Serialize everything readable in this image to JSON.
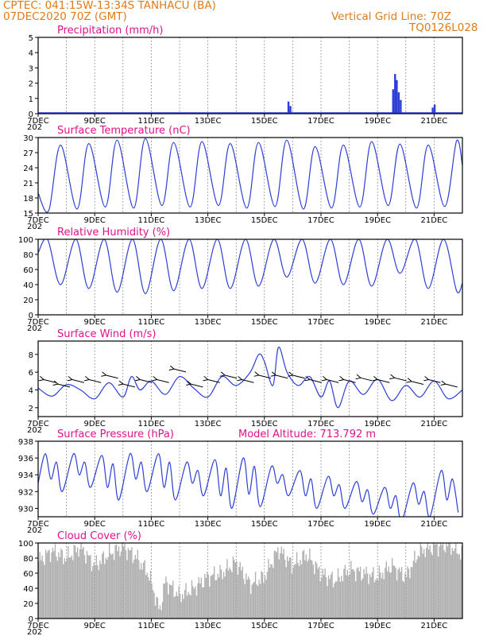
{
  "header": {
    "line1": "CPTEC:   041:15W-13:34S   TANHACU (BA)",
    "line2": "07DEC2020 70Z (GMT)",
    "grid_line": "Vertical Grid Line: 70Z",
    "code": "TQ0126L028"
  },
  "x_axis": {
    "start_day": 7,
    "end_day": 22,
    "tick_days": [
      7,
      9,
      11,
      13,
      15,
      17,
      19,
      21
    ],
    "tick_labels": [
      "7DEC",
      "9DEC",
      "11DEC",
      "13DEC",
      "15DEC",
      "17DEC",
      "19DEC",
      "21DEC"
    ],
    "sub_label": "202"
  },
  "colors": {
    "line": "#2b3fd6",
    "bars": "#2b3fd6",
    "cloud": "#b0b0b0",
    "title": "#e0118c",
    "header": "#e07b17"
  },
  "chart_data": [
    {
      "id": "precip",
      "type": "bar",
      "title": "Precipitation (mm/h)",
      "ylim": [
        0,
        5
      ],
      "yticks": [
        0,
        1,
        2,
        3,
        4,
        5
      ],
      "bars": [
        [
          15.85,
          0.8
        ],
        [
          15.92,
          0.5
        ],
        [
          19.55,
          1.6
        ],
        [
          19.62,
          2.6
        ],
        [
          19.68,
          2.2
        ],
        [
          19.75,
          1.4
        ],
        [
          19.82,
          0.9
        ],
        [
          20.95,
          0.4
        ],
        [
          21.02,
          0.6
        ]
      ]
    },
    {
      "id": "temp",
      "type": "line",
      "title": "Surface Temperature (nC)",
      "ylim": [
        15,
        30
      ],
      "yticks": [
        15,
        18,
        21,
        24,
        27,
        30
      ],
      "daily_min": [
        15.5,
        15.8,
        16.2,
        16.0,
        16.5,
        16.2,
        16.5,
        16.0,
        16.3,
        15.8,
        16.0,
        16.2,
        16.5,
        16.0,
        16.3
      ],
      "daily_max": [
        28.5,
        28.8,
        29.5,
        29.8,
        29.0,
        29.2,
        28.8,
        29.0,
        29.5,
        28.2,
        28.5,
        29.2,
        28.7,
        28.5,
        29.3
      ],
      "min_hour": 9,
      "max_hour": 19
    },
    {
      "id": "rh",
      "type": "line",
      "title": "Relative Humidity (%)",
      "ylim": [
        0,
        100
      ],
      "yticks": [
        0,
        20,
        40,
        60,
        80,
        100
      ],
      "daily_max": [
        100,
        100,
        100,
        100,
        100,
        100,
        100,
        100,
        100,
        100,
        100,
        100,
        100,
        100,
        100
      ],
      "daily_min": [
        40,
        35,
        30,
        28,
        32,
        35,
        35,
        38,
        50,
        42,
        40,
        38,
        55,
        35,
        32
      ],
      "max_hour": 8,
      "min_hour": 19
    },
    {
      "id": "wind",
      "type": "line",
      "title": "Surface Wind (m/s)",
      "ylim": [
        1,
        9.5
      ],
      "yticks": [
        2,
        4,
        6,
        8
      ],
      "speed": [
        [
          7.0,
          4.2
        ],
        [
          7.5,
          3.3
        ],
        [
          8.0,
          4.6
        ],
        [
          8.5,
          4.0
        ],
        [
          9.0,
          3.0
        ],
        [
          9.5,
          4.8
        ],
        [
          10.0,
          3.2
        ],
        [
          10.3,
          5.5
        ],
        [
          10.6,
          4.0
        ],
        [
          11.0,
          5.0
        ],
        [
          11.5,
          3.5
        ],
        [
          12.0,
          5.5
        ],
        [
          12.5,
          4.2
        ],
        [
          13.0,
          3.2
        ],
        [
          13.5,
          5.5
        ],
        [
          14.0,
          4.5
        ],
        [
          14.5,
          6.0
        ],
        [
          14.8,
          8.0
        ],
        [
          15.0,
          7.2
        ],
        [
          15.3,
          4.5
        ],
        [
          15.5,
          8.8
        ],
        [
          15.8,
          6.0
        ],
        [
          16.2,
          4.5
        ],
        [
          16.6,
          5.5
        ],
        [
          17.0,
          3.2
        ],
        [
          17.3,
          5.0
        ],
        [
          17.6,
          2.0
        ],
        [
          18.0,
          5.0
        ],
        [
          18.5,
          3.5
        ],
        [
          19.0,
          5.2
        ],
        [
          19.5,
          2.8
        ],
        [
          20.0,
          4.5
        ],
        [
          20.5,
          3.2
        ],
        [
          21.0,
          5.0
        ],
        [
          21.5,
          3.0
        ],
        [
          22.0,
          4.0
        ]
      ],
      "arrows": [
        [
          7.4,
          5.0
        ],
        [
          7.9,
          4.5
        ],
        [
          8.4,
          5.0
        ],
        [
          9.0,
          5.0
        ],
        [
          9.6,
          5.5
        ],
        [
          10.2,
          4.5
        ],
        [
          10.8,
          5.0
        ],
        [
          11.4,
          5.0
        ],
        [
          12.0,
          6.2
        ],
        [
          12.6,
          4.5
        ],
        [
          13.2,
          5.0
        ],
        [
          13.8,
          5.5
        ],
        [
          14.4,
          5.0
        ],
        [
          15.0,
          5.5
        ],
        [
          15.6,
          5.5
        ],
        [
          16.2,
          5.5
        ],
        [
          16.8,
          5.0
        ],
        [
          17.4,
          5.0
        ],
        [
          18.0,
          5.0
        ],
        [
          18.6,
          5.2
        ],
        [
          19.2,
          5.0
        ],
        [
          19.8,
          5.2
        ],
        [
          20.4,
          4.8
        ],
        [
          21.0,
          5.0
        ],
        [
          21.6,
          4.5
        ]
      ]
    },
    {
      "id": "pressure",
      "type": "line",
      "title": "Surface Pressure (hPa)",
      "annotation": "Model Altitude: 713.792 m",
      "ylim": [
        929,
        938
      ],
      "yticks": [
        930,
        932,
        934,
        936,
        938
      ],
      "daily_hi": [
        936.5,
        936.5,
        936.3,
        936.5,
        936.5,
        935.5,
        935.8,
        936.0,
        935.0,
        934.5,
        933.8,
        933.2,
        932.5,
        933.0,
        934.5
      ],
      "daily_lo": [
        932.0,
        932.5,
        931.0,
        932.0,
        931.0,
        931.5,
        930.0,
        930.2,
        931.5,
        930.0,
        930.0,
        929.3,
        928.5,
        929.0,
        929.5
      ]
    },
    {
      "id": "cloud",
      "type": "area",
      "title": "Cloud Cover (%)",
      "ylim": [
        0,
        100
      ],
      "yticks": [
        0,
        20,
        40,
        60,
        80,
        100
      ],
      "profile": [
        [
          7.0,
          75
        ],
        [
          7.5,
          90
        ],
        [
          8.0,
          80
        ],
        [
          8.5,
          95
        ],
        [
          9.0,
          70
        ],
        [
          9.5,
          85
        ],
        [
          10.0,
          95
        ],
        [
          10.5,
          80
        ],
        [
          10.9,
          60
        ],
        [
          11.3,
          10
        ],
        [
          11.5,
          50
        ],
        [
          12.0,
          30
        ],
        [
          12.5,
          40
        ],
        [
          13.0,
          55
        ],
        [
          13.5,
          60
        ],
        [
          14.0,
          75
        ],
        [
          14.5,
          45
        ],
        [
          15.0,
          55
        ],
        [
          15.5,
          92
        ],
        [
          16.0,
          70
        ],
        [
          16.5,
          85
        ],
        [
          17.0,
          60
        ],
        [
          17.5,
          50
        ],
        [
          18.0,
          65
        ],
        [
          18.5,
          60
        ],
        [
          19.0,
          55
        ],
        [
          19.5,
          70
        ],
        [
          20.0,
          55
        ],
        [
          20.5,
          90
        ],
        [
          21.0,
          95
        ],
        [
          21.5,
          98
        ],
        [
          22.0,
          85
        ]
      ]
    }
  ]
}
